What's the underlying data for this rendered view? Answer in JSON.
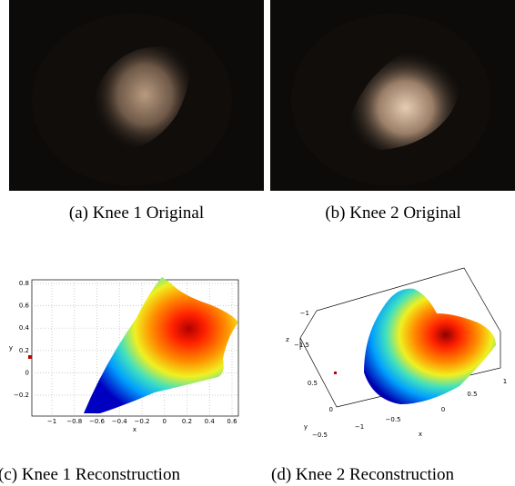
{
  "figures": [
    {
      "caption": "(a) Knee 1 Original"
    },
    {
      "caption": "(b) Knee 2 Original"
    },
    {
      "caption": "(c) Knee 1 Reconstruction",
      "x_label": "x",
      "y_label": "y",
      "x_ticks": [
        "−1",
        "−0.8",
        "−0.6",
        "−0.4",
        "−0.2",
        "0",
        "0.2",
        "0.4",
        "0.6"
      ],
      "y_ticks": [
        "0.8",
        "0.6",
        "0.4",
        "0.2",
        "0",
        "−0.2"
      ]
    },
    {
      "caption": "(d) Knee 2 Reconstruction",
      "x_label": "x",
      "y_label": "y",
      "z_label": "z",
      "x_ticks": [
        "−1",
        "−0.5",
        "0",
        "0.5",
        "1"
      ],
      "y_ticks": [
        "0.5",
        "0",
        "−0.5"
      ],
      "z_ticks": [
        "−1",
        "−1.5"
      ]
    }
  ]
}
